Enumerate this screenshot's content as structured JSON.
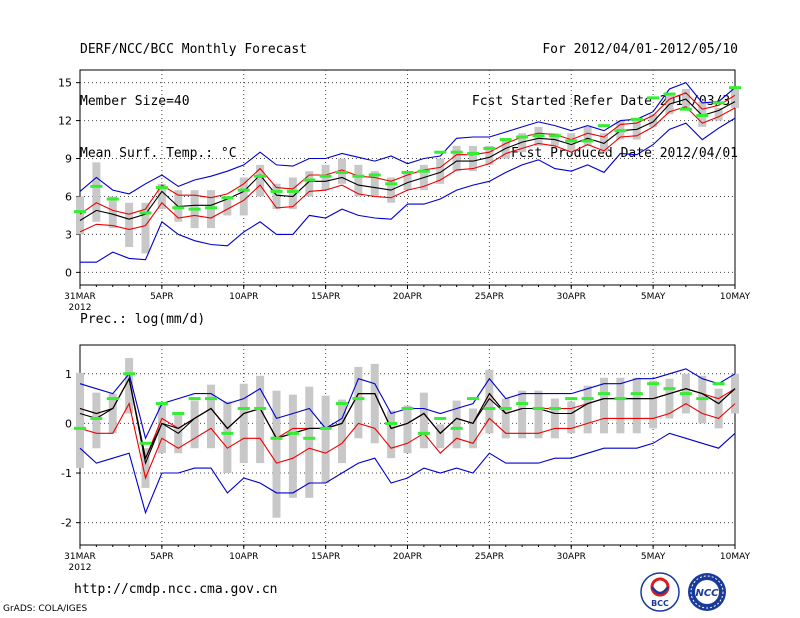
{
  "header": {
    "title": "DERF/NCC/BCC Monthly Forecast",
    "member_size": "Member Size=40",
    "variable": "Mean Surf. Temp.: °C",
    "forecast_period": "For 2012/04/01-2012/05/10",
    "started_refer": "Fcst Started Refer Date 2012/03/31",
    "produced": "Fcst Produced Date 2012/04/01"
  },
  "footer": {
    "url": "http://cmdp.ncc.cma.gov.cn",
    "grads": "GrADS: COLA/IGES",
    "logo_left": "BCC",
    "logo_right": "NCC"
  },
  "colors": {
    "grid": "#444444",
    "box": "#c8c8c8",
    "obs": "#33ee33",
    "mean": "#000000",
    "inner": "#ee0000",
    "outer": "#0000cc",
    "logo_blue": "#1a3a9a",
    "logo_red": "#d81e1e"
  },
  "chart_data": [
    {
      "type": "line",
      "title": "Mean Surf. Temp.: °C",
      "x_tick_labels": [
        "31MAR\n2012",
        "5APR",
        "10APR",
        "15APR",
        "20APR",
        "25APR",
        "30APR",
        "5MAY",
        "10MAY"
      ],
      "x_range_days": [
        0,
        40
      ],
      "ylim": [
        -1,
        16
      ],
      "y_ticks": [
        0,
        3,
        6,
        9,
        12,
        15
      ],
      "grid": true,
      "series": [
        {
          "name": "upper bound",
          "values": [
            6.4,
            7.5,
            6.5,
            6.2,
            7.0,
            7.7,
            6.8,
            7.3,
            7.6,
            8.0,
            8.5,
            9.5,
            8.5,
            8.4,
            9.0,
            9.0,
            9.4,
            9.1,
            8.8,
            9.2,
            8.6,
            9.0,
            9.2,
            10.6,
            10.7,
            10.7,
            11.1,
            11.5,
            11.9,
            11.6,
            11.2,
            11.6,
            11.2,
            12.0,
            12.1,
            12.7,
            14.5,
            15.0,
            13.4,
            13.5,
            14.6
          ]
        },
        {
          "name": "upper inner",
          "values": [
            4.6,
            5.5,
            4.9,
            4.6,
            5.0,
            6.9,
            6.1,
            6.1,
            5.9,
            6.2,
            7.0,
            8.2,
            6.7,
            6.6,
            7.7,
            7.7,
            8.1,
            7.6,
            7.5,
            7.2,
            7.7,
            8.1,
            8.3,
            9.3,
            9.3,
            9.5,
            10.2,
            10.7,
            11.0,
            10.9,
            10.5,
            11.0,
            10.7,
            11.7,
            11.8,
            12.4,
            13.7,
            14.2,
            12.9,
            13.2,
            14.0
          ]
        },
        {
          "name": "ensemble mean",
          "values": [
            4.1,
            4.9,
            4.6,
            4.2,
            4.6,
            6.4,
            5.2,
            5.3,
            5.3,
            5.8,
            6.4,
            7.7,
            6.1,
            6.0,
            7.2,
            7.2,
            7.5,
            6.9,
            6.7,
            6.5,
            7.1,
            7.5,
            7.9,
            8.8,
            8.8,
            9.1,
            9.8,
            10.3,
            10.6,
            10.5,
            10.1,
            10.6,
            10.2,
            11.2,
            11.3,
            11.9,
            13.3,
            13.7,
            12.4,
            12.8,
            13.5
          ]
        },
        {
          "name": "lower inner",
          "values": [
            3.2,
            3.8,
            3.7,
            3.4,
            3.7,
            5.5,
            4.3,
            4.5,
            4.3,
            5.0,
            5.7,
            6.9,
            5.1,
            5.2,
            6.4,
            6.5,
            6.9,
            6.2,
            6.0,
            5.9,
            6.5,
            6.8,
            7.3,
            8.1,
            8.2,
            8.6,
            9.4,
            9.8,
            10.2,
            10.0,
            9.5,
            10.1,
            9.6,
            10.7,
            10.8,
            11.5,
            12.7,
            13.1,
            11.8,
            12.3,
            13.0
          ]
        },
        {
          "name": "lower bound",
          "values": [
            0.8,
            0.8,
            1.6,
            1.1,
            1.0,
            4.0,
            3.0,
            2.5,
            2.2,
            2.1,
            3.2,
            4.0,
            3.0,
            3.0,
            4.5,
            4.3,
            5.0,
            4.5,
            4.3,
            4.2,
            5.4,
            5.4,
            5.8,
            6.5,
            6.9,
            7.2,
            7.9,
            8.5,
            8.9,
            8.2,
            8.0,
            8.5,
            7.9,
            9.4,
            9.3,
            10.1,
            11.3,
            11.8,
            10.5,
            11.4,
            12.2
          ]
        }
      ],
      "boxes": {
        "q_low": [
          3.0,
          4.0,
          3.5,
          2.0,
          1.5,
          5.0,
          4.0,
          3.5,
          3.5,
          4.5,
          4.5,
          6.0,
          5.0,
          5.0,
          6.0,
          6.5,
          7.0,
          6.0,
          6.0,
          5.5,
          6.5,
          6.5,
          7.0,
          8.0,
          8.0,
          8.5,
          9.0,
          9.5,
          10.0,
          10.0,
          9.5,
          10.0,
          9.5,
          10.5,
          10.5,
          11.5,
          12.5,
          13.0,
          11.5,
          12.0,
          13.0
        ],
        "q_high": [
          6.0,
          8.7,
          6.0,
          5.5,
          5.5,
          7.0,
          6.5,
          6.5,
          6.5,
          6.0,
          7.5,
          8.5,
          7.0,
          7.5,
          8.0,
          8.5,
          9.0,
          8.5,
          8.0,
          7.5,
          8.0,
          8.5,
          9.0,
          10.0,
          10.0,
          10.0,
          10.5,
          11.0,
          11.5,
          11.0,
          11.0,
          11.5,
          11.0,
          12.0,
          12.0,
          12.5,
          14.0,
          14.5,
          13.5,
          13.0,
          14.5
        ]
      },
      "observed": [
        4.8,
        6.8,
        5.8,
        null,
        4.7,
        6.7,
        5.1,
        5.0,
        5.1,
        5.9,
        6.5,
        7.6,
        6.4,
        6.4,
        7.3,
        7.6,
        7.9,
        7.6,
        7.7,
        7.0,
        7.9,
        8.0,
        9.5,
        9.5,
        9.4,
        9.8,
        10.5,
        10.7,
        10.8,
        10.8,
        10.4,
        10.4,
        11.6,
        11.2,
        12.1,
        13.8,
        14.1,
        12.9,
        12.4,
        13.4,
        14.6
      ]
    },
    {
      "type": "line",
      "title": "Prec.: log(mm/d)",
      "x_tick_labels": [
        "31MAR\n2012",
        "5APR",
        "10APR",
        "15APR",
        "20APR",
        "25APR",
        "30APR",
        "5MAY",
        "10MAY"
      ],
      "x_range_days": [
        0,
        40
      ],
      "ylim": [
        -2.45,
        1.58
      ],
      "y_ticks": [
        -2,
        -1,
        0,
        1
      ],
      "grid": true,
      "series": [
        {
          "name": "upper bound",
          "values": [
            0.8,
            0.7,
            0.6,
            1.0,
            -0.3,
            0.4,
            0.5,
            0.6,
            0.6,
            0.4,
            0.5,
            0.7,
            0.1,
            0.2,
            0.3,
            -0.1,
            0.1,
            0.9,
            0.8,
            0.2,
            0.3,
            0.3,
            0.2,
            0.3,
            0.4,
            0.9,
            0.5,
            0.6,
            0.6,
            0.6,
            0.6,
            0.7,
            0.8,
            0.8,
            0.9,
            0.9,
            1.0,
            1.1,
            0.9,
            0.8,
            1.0
          ]
        },
        {
          "name": "upper inner",
          "values": [
            0.3,
            0.2,
            0.3,
            0.9,
            -0.7,
            0.1,
            -0.1,
            0.1,
            0.3,
            -0.1,
            0.2,
            0.3,
            -0.3,
            -0.1,
            -0.1,
            -0.1,
            0.0,
            0.6,
            0.6,
            -0.1,
            0.0,
            0.2,
            -0.2,
            0.1,
            0.0,
            0.6,
            0.2,
            0.3,
            0.3,
            0.3,
            0.3,
            0.4,
            0.5,
            0.5,
            0.5,
            0.5,
            0.6,
            0.7,
            0.6,
            0.5,
            0.7
          ]
        },
        {
          "name": "ensemble mean",
          "values": [
            0.3,
            0.2,
            0.3,
            0.9,
            -0.8,
            0.0,
            -0.1,
            0.1,
            0.3,
            -0.1,
            0.2,
            0.3,
            -0.3,
            -0.2,
            -0.1,
            -0.1,
            0.0,
            0.6,
            0.6,
            -0.1,
            0.0,
            0.2,
            -0.2,
            0.1,
            0.0,
            0.6,
            0.2,
            0.3,
            0.3,
            0.2,
            0.2,
            0.4,
            0.5,
            0.5,
            0.5,
            0.5,
            0.6,
            0.7,
            0.6,
            0.4,
            0.7
          ]
        },
        {
          "name": "lower inner",
          "values": [
            -0.1,
            -0.2,
            -0.2,
            0.4,
            -1.1,
            -0.3,
            -0.5,
            -0.3,
            -0.1,
            -0.5,
            -0.3,
            -0.3,
            -0.8,
            -0.7,
            -0.5,
            -0.6,
            -0.4,
            0.0,
            -0.1,
            -0.5,
            -0.4,
            -0.2,
            -0.6,
            -0.3,
            -0.4,
            0.1,
            -0.2,
            -0.2,
            -0.2,
            -0.1,
            -0.1,
            0.0,
            0.1,
            0.1,
            0.1,
            0.1,
            0.2,
            0.4,
            0.2,
            0.1,
            0.4
          ]
        },
        {
          "name": "lower bound",
          "values": [
            -0.5,
            -0.8,
            -0.7,
            -0.6,
            -1.8,
            -1.0,
            -1.0,
            -0.9,
            -0.9,
            -1.4,
            -1.1,
            -1.2,
            -1.4,
            -1.4,
            -1.2,
            -1.2,
            -1.0,
            -0.8,
            -0.7,
            -1.2,
            -1.1,
            -0.9,
            -1.0,
            -0.9,
            -1.0,
            -0.6,
            -0.8,
            -0.8,
            -0.8,
            -0.7,
            -0.7,
            -0.6,
            -0.5,
            -0.5,
            -0.5,
            -0.4,
            -0.2,
            -0.3,
            -0.4,
            -0.5,
            -0.2
          ]
        },
        {
          "name": "second member",
          "values": [
            0.2,
            0.1,
            0.3,
            0.9,
            -0.7,
            0.0,
            -0.2,
            0.1,
            0.3,
            -0.1,
            0.2,
            0.3,
            -0.3,
            -0.2,
            -0.1,
            -0.1,
            0.0,
            0.6,
            0.6,
            -0.1,
            0.0,
            0.2,
            -0.2,
            0.1,
            0.0,
            0.5,
            0.2,
            0.3,
            0.3,
            0.2,
            0.2,
            0.4,
            0.5,
            0.5,
            0.5,
            0.5,
            0.6,
            0.7,
            0.6,
            0.4,
            0.7
          ]
        }
      ],
      "boxes": {
        "q_low": [
          -0.9,
          -0.5,
          -0.2,
          0.2,
          -1.3,
          -0.6,
          -0.6,
          -0.5,
          -0.5,
          -1.0,
          -0.8,
          -0.8,
          -1.9,
          -1.5,
          -1.5,
          -1.2,
          -0.8,
          -0.3,
          -0.4,
          -0.7,
          -0.6,
          -0.5,
          -0.5,
          -0.5,
          -0.5,
          -0.2,
          -0.3,
          -0.3,
          -0.3,
          -0.3,
          -0.2,
          -0.2,
          -0.2,
          -0.2,
          -0.2,
          -0.1,
          0.1,
          0.2,
          0.0,
          -0.1,
          0.2
        ]
      },
      "observed": [
        -0.1,
        0.1,
        0.5,
        1.0,
        -0.4,
        0.4,
        0.2,
        0.5,
        0.5,
        -0.2,
        0.3,
        0.3,
        -0.3,
        -0.2,
        -0.3,
        -0.1,
        0.4,
        0.5,
        null,
        0.0,
        0.3,
        -0.2,
        0.1,
        -0.1,
        0.5,
        0.3,
        0.3,
        0.4,
        0.3,
        0.3,
        0.5,
        0.5,
        0.6,
        0.5,
        0.6,
        0.8,
        0.7,
        0.6,
        0.5,
        0.8,
        null
      ]
    }
  ]
}
